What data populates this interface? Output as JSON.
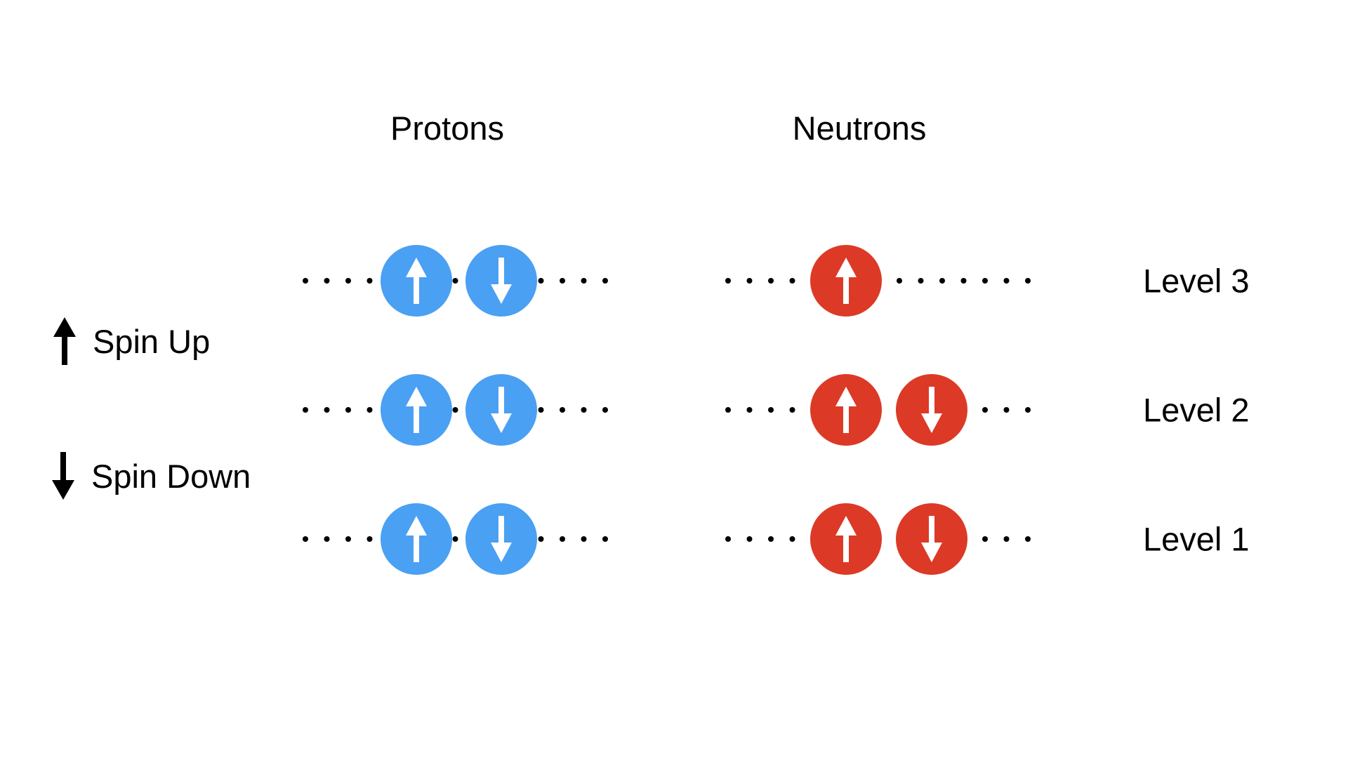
{
  "columns": {
    "protons": {
      "label": "Protons",
      "color": "#4aa0f2",
      "levels": [
        {
          "level": 3,
          "particles": [
            "up",
            "down"
          ]
        },
        {
          "level": 2,
          "particles": [
            "up",
            "down"
          ]
        },
        {
          "level": 1,
          "particles": [
            "up",
            "down"
          ]
        }
      ]
    },
    "neutrons": {
      "label": "Neutrons",
      "color": "#dc3a26",
      "levels": [
        {
          "level": 3,
          "particles": [
            "up"
          ]
        },
        {
          "level": 2,
          "particles": [
            "up",
            "down"
          ]
        },
        {
          "level": 1,
          "particles": [
            "up",
            "down"
          ]
        }
      ]
    }
  },
  "level_labels": [
    "Level 3",
    "Level 2",
    "Level 1"
  ],
  "legend": {
    "spin_up": {
      "label": "Spin Up",
      "icon": "arrow-up-icon"
    },
    "spin_down": {
      "label": "Spin Down",
      "icon": "arrow-down-icon"
    }
  }
}
